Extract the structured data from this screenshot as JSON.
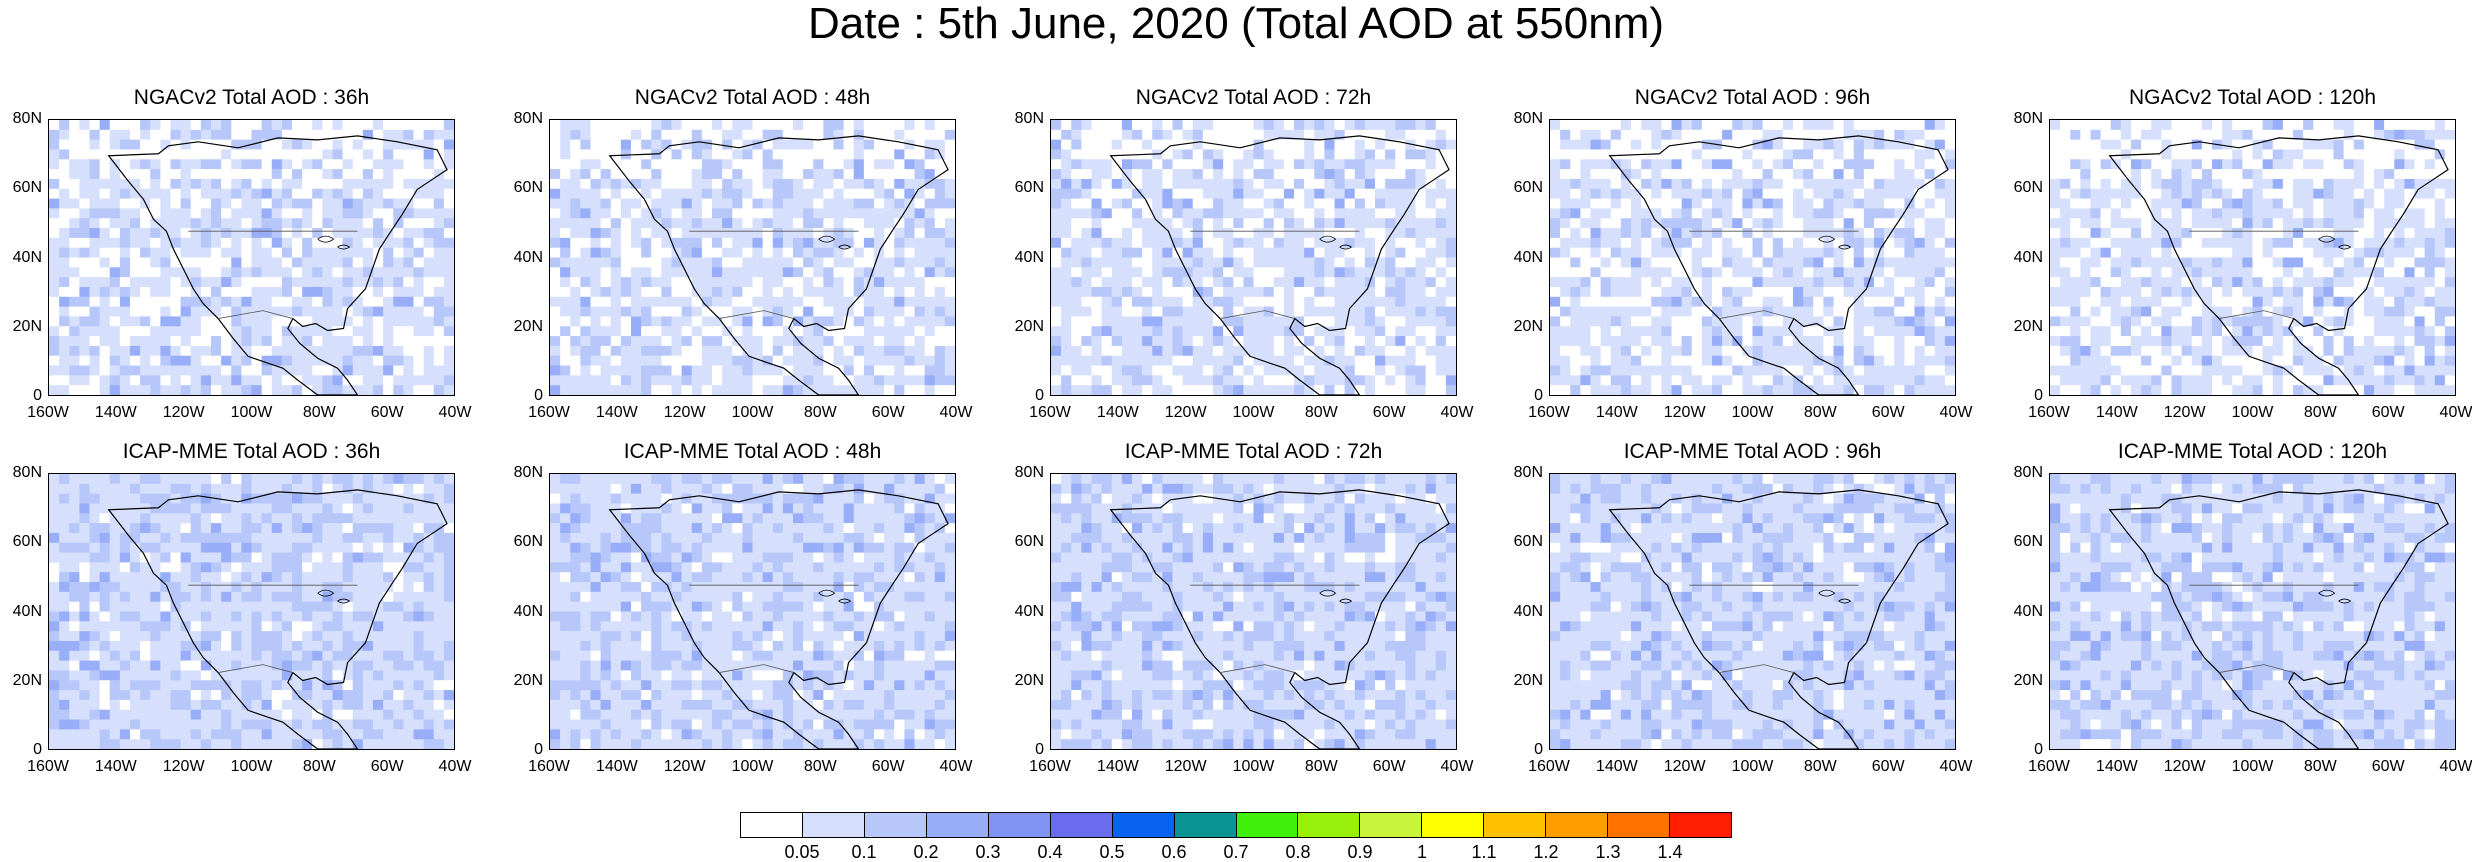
{
  "title": "Date : 5th June, 2020 (Total AOD at 550nm)",
  "lat_ticks": [
    "80N",
    "60N",
    "40N",
    "20N",
    "0"
  ],
  "lon_ticks": [
    "160W",
    "140W",
    "120W",
    "100W",
    "80W",
    "60W",
    "40W"
  ],
  "panels": [
    {
      "title": "NGACv2 Total AOD : 36h",
      "model": "NGACv2",
      "lead": "36h"
    },
    {
      "title": "NGACv2 Total AOD : 48h",
      "model": "NGACv2",
      "lead": "48h"
    },
    {
      "title": "NGACv2 Total AOD : 72h",
      "model": "NGACv2",
      "lead": "72h"
    },
    {
      "title": "NGACv2 Total AOD : 96h",
      "model": "NGACv2",
      "lead": "96h"
    },
    {
      "title": "NGACv2 Total AOD : 120h",
      "model": "NGACv2",
      "lead": "120h"
    },
    {
      "title": "ICAP-MME Total AOD : 36h",
      "model": "ICAP-MME",
      "lead": "36h"
    },
    {
      "title": "ICAP-MME Total AOD : 48h",
      "model": "ICAP-MME",
      "lead": "48h"
    },
    {
      "title": "ICAP-MME Total AOD : 72h",
      "model": "ICAP-MME",
      "lead": "72h"
    },
    {
      "title": "ICAP-MME Total AOD : 96h",
      "model": "ICAP-MME",
      "lead": "96h"
    },
    {
      "title": "ICAP-MME Total AOD : 120h",
      "model": "ICAP-MME",
      "lead": "120h"
    }
  ],
  "colorbar": {
    "labels": [
      "0.05",
      "0.1",
      "0.2",
      "0.3",
      "0.4",
      "0.5",
      "0.6",
      "0.7",
      "0.8",
      "0.9",
      "1",
      "1.1",
      "1.2",
      "1.3",
      "1.4"
    ],
    "colors": [
      "#ffffff",
      "#d6e0fc",
      "#b7c7fa",
      "#98aef8",
      "#8093f2",
      "#6a6cf0",
      "#0a62f0",
      "#0a9494",
      "#3ff00a",
      "#96f00a",
      "#c8f53c",
      "#ffff00",
      "#ffc200",
      "#ff9d00",
      "#ff7200",
      "#ff1e00"
    ]
  },
  "colors": {
    "aod_low": "#d6e0fc",
    "aod_mid": "#b7c7fa",
    "aod_high": "#98aef8",
    "coastline": "#000000"
  }
}
